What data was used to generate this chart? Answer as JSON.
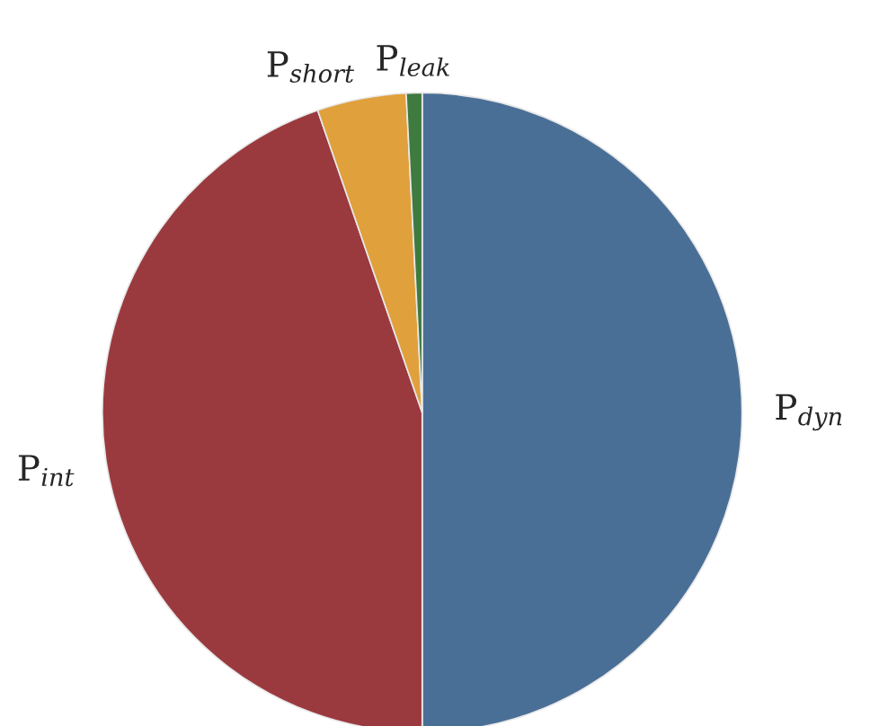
{
  "chart_data": {
    "type": "pie",
    "categories": [
      "P$_{dyn}$",
      "P$_{int}$",
      "P$_{short}$",
      "P$_{leak}$"
    ],
    "values": [
      50,
      44.7,
      4.5,
      0.8
    ],
    "colors": [
      "#4a6f96",
      "#9a3a3f",
      "#e0a03c",
      "#3f7a3f"
    ]
  }
}
